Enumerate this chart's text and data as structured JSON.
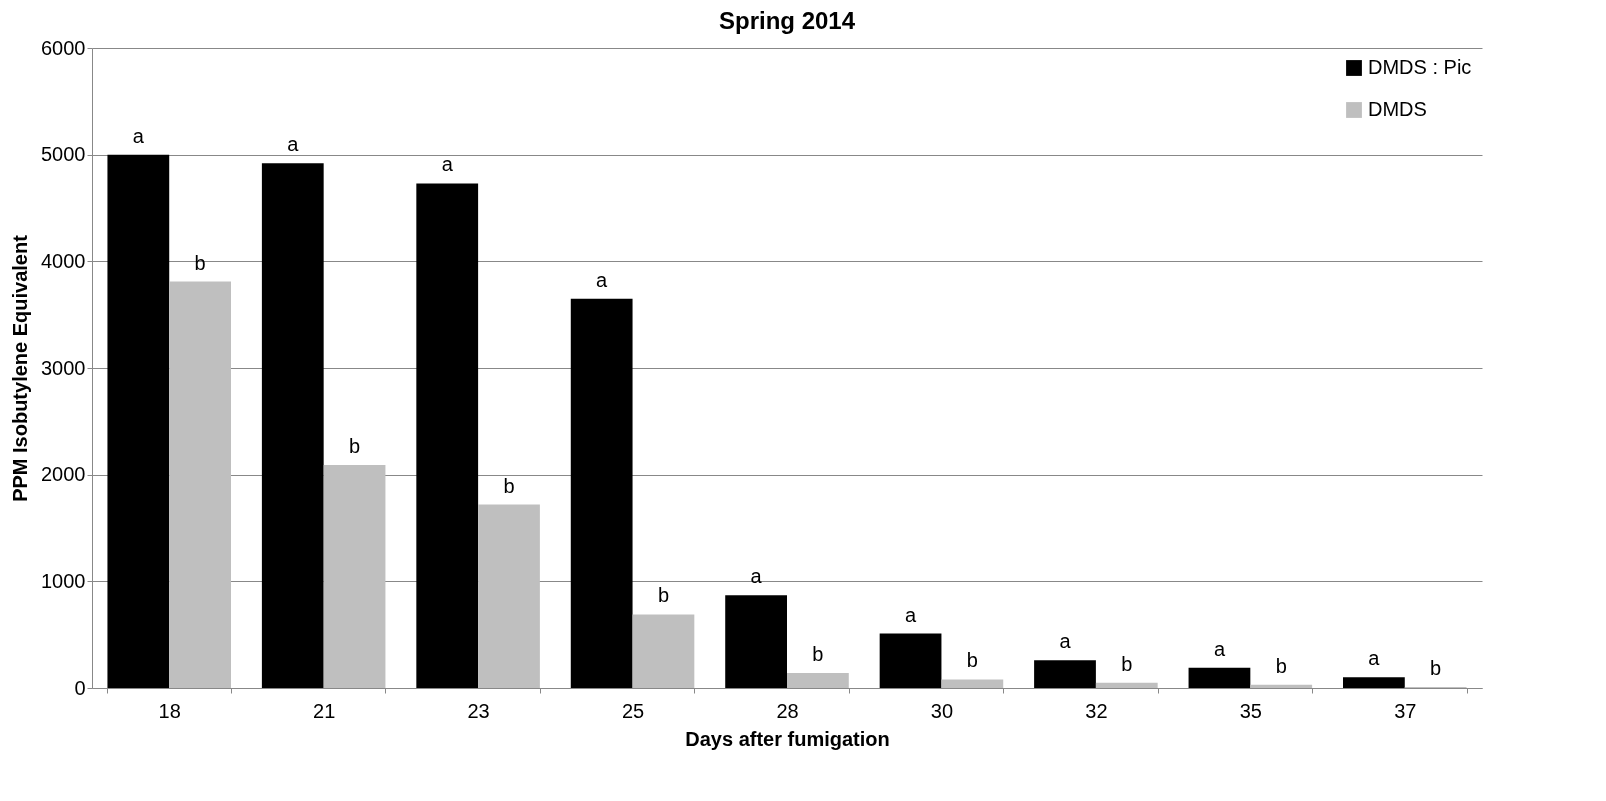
{
  "chart_data": {
    "type": "bar",
    "title": "Spring 2014",
    "xlabel": "Days after fumigation",
    "ylabel": "PPM Isobutylene Equivalent",
    "categories": [
      "18",
      "21",
      "23",
      "25",
      "28",
      "30",
      "32",
      "35",
      "37"
    ],
    "series": [
      {
        "name": "DMDS : Pic",
        "color": "#000000",
        "values": [
          5000,
          4920,
          4730,
          3650,
          870,
          510,
          260,
          190,
          100
        ],
        "value_labels": [
          "a",
          "a",
          "a",
          "a",
          "a",
          "a",
          "a",
          "a",
          "a"
        ]
      },
      {
        "name": "DMDS",
        "color": "#bfbfbf",
        "values": [
          3810,
          2090,
          1720,
          690,
          140,
          80,
          50,
          30,
          10
        ],
        "value_labels": [
          "b",
          "b",
          "b",
          "b",
          "b",
          "b",
          "b",
          "b",
          "b"
        ]
      }
    ],
    "ylim": [
      0,
      6000
    ],
    "yticks": [
      0,
      1000,
      2000,
      3000,
      4000,
      5000,
      6000
    ],
    "grid": "y",
    "legend": "top right"
  }
}
